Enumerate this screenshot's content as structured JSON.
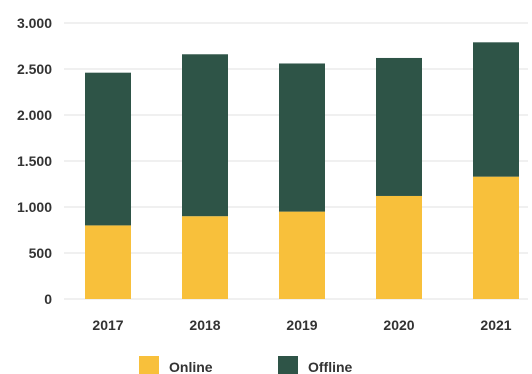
{
  "chart_data": {
    "type": "bar",
    "stacked": true,
    "categories": [
      "2017",
      "2018",
      "2019",
      "2020",
      "2021"
    ],
    "series": [
      {
        "name": "Online",
        "values": [
          800,
          900,
          950,
          1120,
          1330
        ],
        "color": "#f8c03b"
      },
      {
        "name": "Offline",
        "values": [
          1660,
          1760,
          1610,
          1500,
          1460
        ],
        "color": "#2e5447"
      }
    ],
    "ylim": [
      0,
      3000
    ],
    "yticks": [
      0,
      500,
      1000,
      1500,
      2000,
      2500,
      3000
    ],
    "ytick_labels": [
      "0",
      "500",
      "1.000",
      "1.500",
      "2.000",
      "2.500",
      "3.000"
    ],
    "grid": true,
    "legend_position": "bottom",
    "title": "",
    "xlabel": "",
    "ylabel": ""
  }
}
